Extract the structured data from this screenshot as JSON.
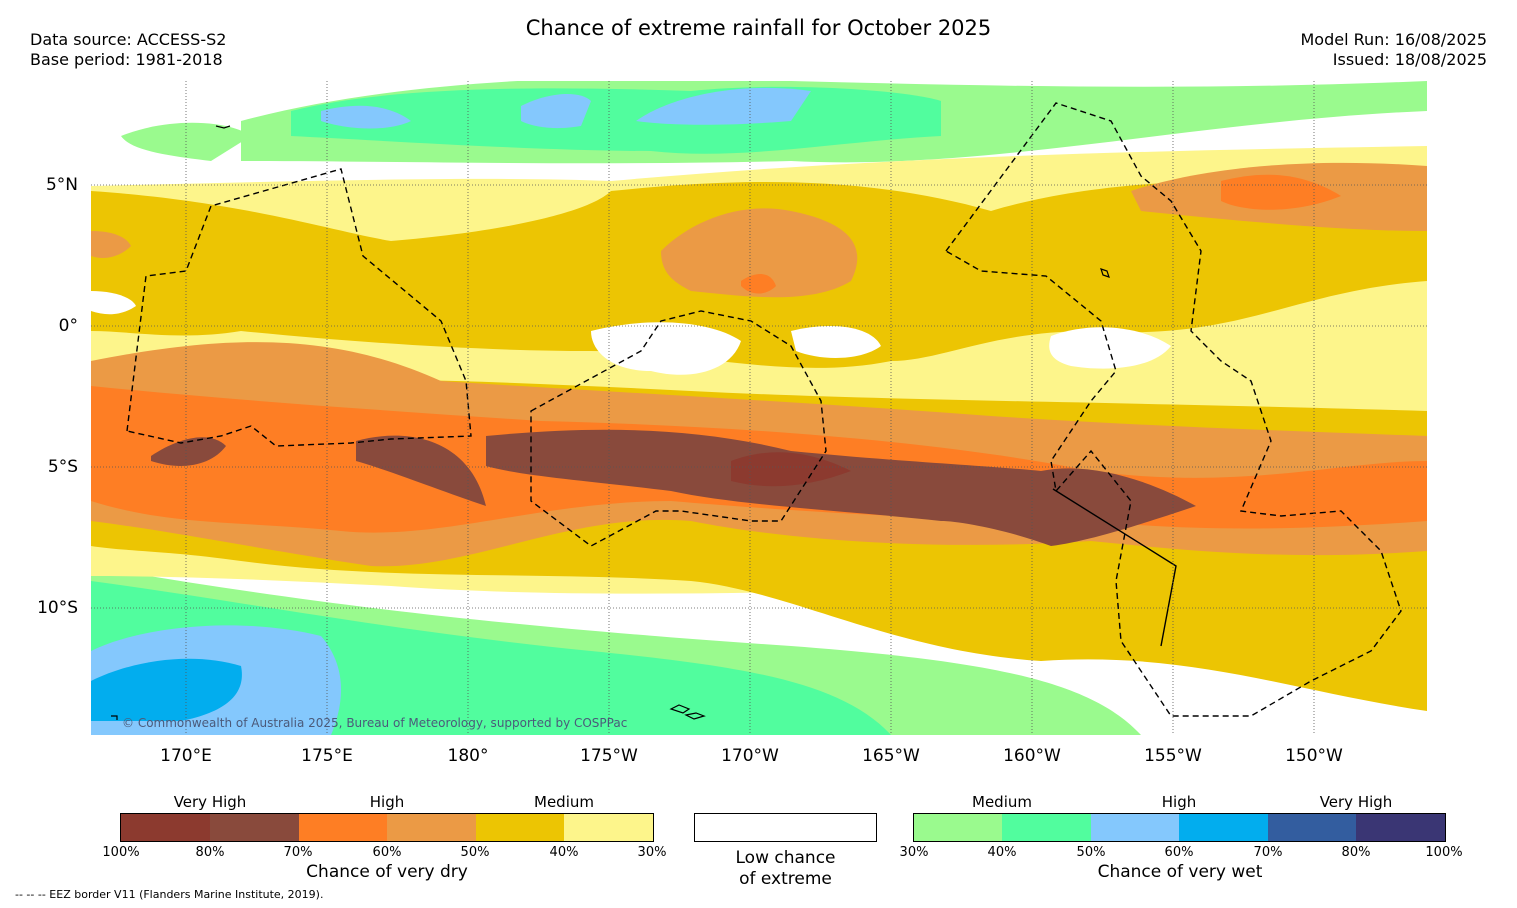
{
  "header": {
    "title": "Chance of extreme rainfall for October 2025",
    "data_source": "Data source: ACCESS-S2",
    "base_period": "Base period: 1981-2018",
    "model_run": "Model Run: 16/08/2025",
    "issued": "Issued: 18/08/2025"
  },
  "map": {
    "lat_labels": [
      "5°N",
      "0°",
      "5°S",
      "10°S"
    ],
    "lon_labels": [
      "170°E",
      "175°E",
      "180°",
      "175°W",
      "170°W",
      "165°W",
      "160°W",
      "155°W",
      "150°W"
    ],
    "credit": "© Commonwealth of Australia 2025, Bureau of Meteorology, supported by COSPPac"
  },
  "dry_legend": {
    "headings": [
      "Very High",
      "High",
      "Medium"
    ],
    "ticks": [
      "100%",
      "80%",
      "70%",
      "60%",
      "50%",
      "40%",
      "30%"
    ],
    "caption": "Chance of very dry",
    "colors": [
      "#8c3a2f",
      "#894a3c",
      "#fe7e24",
      "#eb9a45",
      "#ecc503",
      "#fdf58b"
    ]
  },
  "low_legend": {
    "caption_line1": "Low chance",
    "caption_line2": "of extreme"
  },
  "wet_legend": {
    "headings": [
      "Medium",
      "High",
      "Very High"
    ],
    "ticks": [
      "30%",
      "40%",
      "50%",
      "60%",
      "70%",
      "80%",
      "100%"
    ],
    "caption": "Chance of very wet",
    "colors": [
      "#9afa8e",
      "#51fd9e",
      "#84c8fd",
      "#02adee",
      "#335d9f",
      "#3a3674"
    ]
  },
  "footer": {
    "eez_note": "--  --  -- EEZ border V11 (Flanders Marine Institute, 2019)."
  }
}
